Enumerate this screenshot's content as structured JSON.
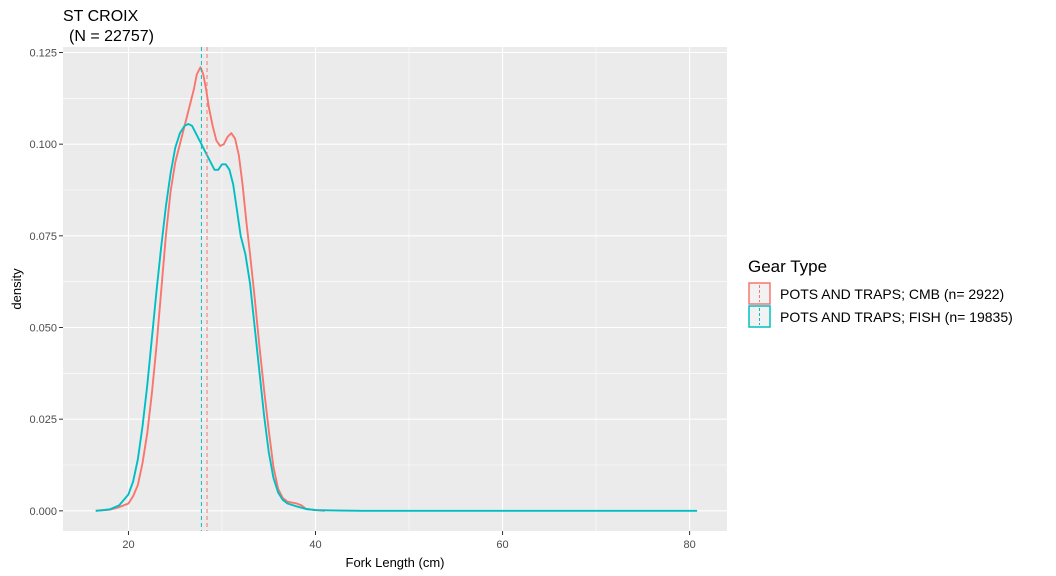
{
  "chart_data": {
    "type": "line",
    "title": "ST CROIX",
    "subtitle": "(N = 22757)",
    "xlabel": "Fork Length (cm)",
    "ylabel": "density",
    "xlim": [
      13,
      84
    ],
    "ylim": [
      -0.0055,
      0.1265
    ],
    "x_ticks": [
      20,
      40,
      60,
      80
    ],
    "y_ticks": [
      0.0,
      0.025,
      0.05,
      0.075,
      0.1,
      0.125
    ],
    "y_tick_labels": [
      "0.000",
      "0.025",
      "0.050",
      "0.075",
      "0.100",
      "0.125"
    ],
    "grid": true,
    "legend": {
      "title": "Gear Type",
      "position": "right",
      "entries": [
        "POTS AND TRAPS; CMB (n= 2922)",
        "POTS AND TRAPS; FISH (n= 19835)"
      ]
    },
    "series": [
      {
        "name": "POTS AND TRAPS; CMB (n= 2922)",
        "color": "#F8766D",
        "mean": 28.4,
        "points": [
          [
            16.5,
            0.0
          ],
          [
            18,
            0.0003
          ],
          [
            19,
            0.001
          ],
          [
            20,
            0.002
          ],
          [
            20.5,
            0.004
          ],
          [
            21,
            0.007
          ],
          [
            21.5,
            0.013
          ],
          [
            22,
            0.021
          ],
          [
            22.5,
            0.032
          ],
          [
            23,
            0.045
          ],
          [
            23.5,
            0.06
          ],
          [
            24,
            0.075
          ],
          [
            24.5,
            0.087
          ],
          [
            25,
            0.095
          ],
          [
            25.5,
            0.1
          ],
          [
            26,
            0.105
          ],
          [
            26.5,
            0.11
          ],
          [
            27,
            0.115
          ],
          [
            27.3,
            0.119
          ],
          [
            27.7,
            0.121
          ],
          [
            28,
            0.119
          ],
          [
            28.3,
            0.115
          ],
          [
            28.6,
            0.11
          ],
          [
            29,
            0.105
          ],
          [
            29.4,
            0.101
          ],
          [
            29.8,
            0.0995
          ],
          [
            30.2,
            0.1
          ],
          [
            30.6,
            0.102
          ],
          [
            31,
            0.103
          ],
          [
            31.4,
            0.1015
          ],
          [
            31.8,
            0.097
          ],
          [
            32.2,
            0.089
          ],
          [
            32.6,
            0.079
          ],
          [
            33,
            0.07
          ],
          [
            33.5,
            0.058
          ],
          [
            34,
            0.045
          ],
          [
            34.5,
            0.033
          ],
          [
            35,
            0.022
          ],
          [
            35.5,
            0.012
          ],
          [
            36,
            0.006
          ],
          [
            36.5,
            0.0035
          ],
          [
            37,
            0.0025
          ],
          [
            38,
            0.002
          ],
          [
            38.5,
            0.0015
          ],
          [
            39,
            0.0005
          ],
          [
            40,
            0.0002
          ],
          [
            41,
            0.0
          ]
        ]
      },
      {
        "name": "POTS AND TRAPS; FISH (n= 19835)",
        "color": "#00BFC4",
        "mean": 27.8,
        "points": [
          [
            16.5,
            0.0
          ],
          [
            18,
            0.0004
          ],
          [
            19,
            0.0015
          ],
          [
            19.5,
            0.003
          ],
          [
            20,
            0.0045
          ],
          [
            20.5,
            0.008
          ],
          [
            21,
            0.014
          ],
          [
            21.5,
            0.023
          ],
          [
            22,
            0.034
          ],
          [
            22.5,
            0.047
          ],
          [
            23,
            0.06
          ],
          [
            23.5,
            0.072
          ],
          [
            24,
            0.083
          ],
          [
            24.5,
            0.092
          ],
          [
            25,
            0.099
          ],
          [
            25.5,
            0.103
          ],
          [
            26,
            0.105
          ],
          [
            26.4,
            0.1055
          ],
          [
            26.8,
            0.105
          ],
          [
            27.2,
            0.103
          ],
          [
            27.6,
            0.101
          ],
          [
            28,
            0.099
          ],
          [
            28.4,
            0.097
          ],
          [
            28.8,
            0.095
          ],
          [
            29.2,
            0.093
          ],
          [
            29.6,
            0.093
          ],
          [
            30,
            0.0945
          ],
          [
            30.4,
            0.0945
          ],
          [
            30.8,
            0.093
          ],
          [
            31.2,
            0.089
          ],
          [
            31.6,
            0.082
          ],
          [
            32,
            0.075
          ],
          [
            32.5,
            0.07
          ],
          [
            33,
            0.062
          ],
          [
            33.5,
            0.05
          ],
          [
            34,
            0.038
          ],
          [
            34.5,
            0.026
          ],
          [
            35,
            0.016
          ],
          [
            35.5,
            0.009
          ],
          [
            36,
            0.005
          ],
          [
            36.5,
            0.003
          ],
          [
            37,
            0.002
          ],
          [
            38,
            0.0012
          ],
          [
            39,
            0.0005
          ],
          [
            40,
            0.0002
          ],
          [
            42,
            0.0001
          ],
          [
            45,
            0.0
          ],
          [
            80.8,
            0.0
          ]
        ]
      }
    ]
  }
}
